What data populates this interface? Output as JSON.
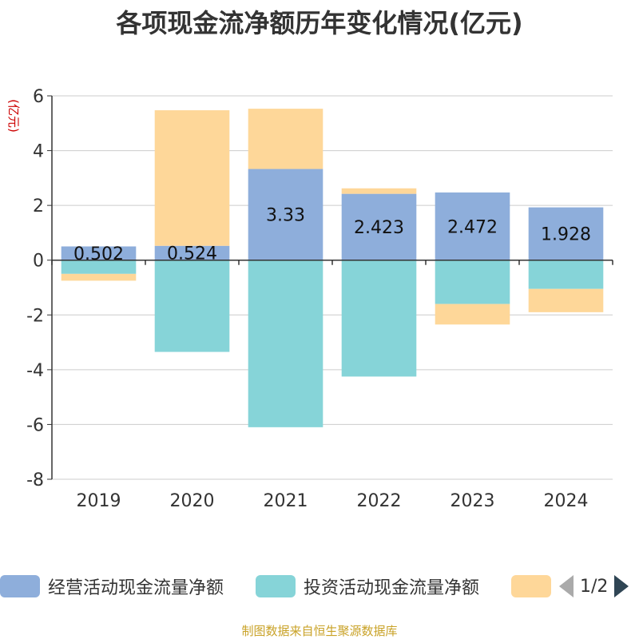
{
  "chart_data": {
    "type": "bar",
    "stacked": true,
    "title": "各项现金流净额历年变化情况(亿元)",
    "ylabel": "(亿元)",
    "xlabel": "",
    "categories": [
      "2019",
      "2020",
      "2021",
      "2022",
      "2023",
      "2024"
    ],
    "ylim": [
      -8,
      6
    ],
    "yticks": [
      6,
      4,
      2,
      0,
      -2,
      -4,
      -6,
      -8
    ],
    "grid": true,
    "legend_position": "bottom",
    "series": [
      {
        "name": "经营活动现金流量净额",
        "color": "#8eaedb",
        "values": [
          0.502,
          0.524,
          3.33,
          2.423,
          2.472,
          1.928
        ],
        "labels": [
          "0.502",
          "0.524",
          "3.33",
          "2.423",
          "2.472",
          "1.928"
        ]
      },
      {
        "name": "投资活动现金流量净额",
        "color": "#86d4d8",
        "values": [
          -0.5,
          -3.35,
          -6.1,
          -4.25,
          -1.6,
          -1.05
        ]
      },
      {
        "name": "",
        "color": "#fed799",
        "values": [
          -0.25,
          4.95,
          2.2,
          0.2,
          -0.75,
          -0.85
        ]
      }
    ]
  },
  "legend": {
    "items": [
      {
        "label": "经营活动现金流量净额",
        "color": "#8eaedb"
      },
      {
        "label": "投资活动现金流量净额",
        "color": "#86d4d8"
      },
      {
        "label": "",
        "color": "#fed799"
      }
    ],
    "page": "1/2"
  },
  "source_note": "制图数据来自恒生聚源数据库"
}
